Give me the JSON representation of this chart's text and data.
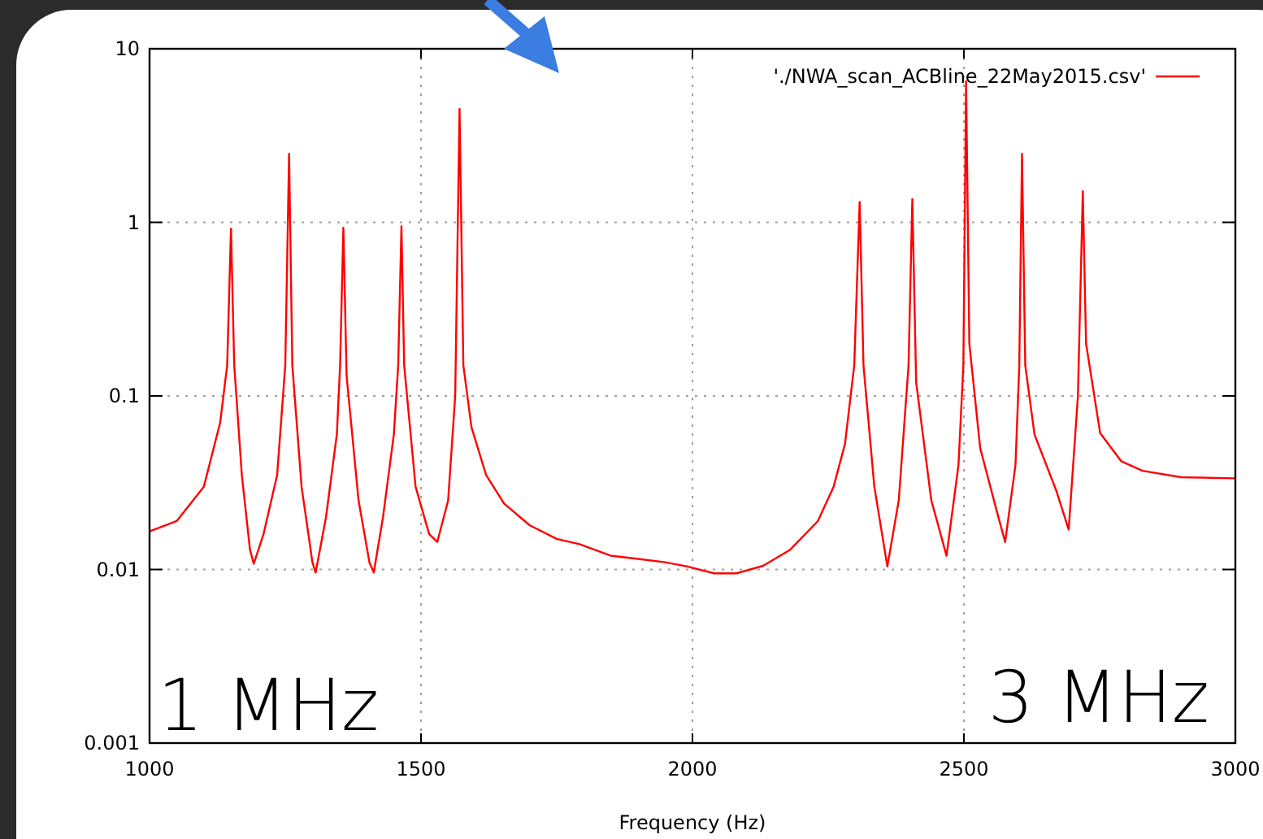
{
  "chart_data": {
    "type": "line",
    "xlabel": "Frequency (Hz)",
    "annotations": [
      "1 MHz",
      "3 MHz"
    ],
    "xlim": [
      1000,
      3000
    ],
    "xticks": [
      1000,
      1500,
      2000,
      2500,
      3000
    ],
    "ylim": [
      0.001,
      10
    ],
    "yticks": [
      0.001,
      0.01,
      0.1,
      1,
      10
    ],
    "log": "y",
    "grid": true,
    "legend": "top right",
    "marker": "none",
    "line_style": "solid",
    "series": [
      {
        "name": "'./NWA_scan_ACBline_22May2015.csv'",
        "color": "#ff0000",
        "x": [
          1000,
          1050,
          1100,
          1130,
          1143,
          1150,
          1156,
          1170,
          1185,
          1192,
          1210,
          1235,
          1250,
          1257,
          1263,
          1280,
          1300,
          1306,
          1325,
          1345,
          1351,
          1357,
          1363,
          1385,
          1405,
          1413,
          1430,
          1450,
          1458,
          1464,
          1469,
          1490,
          1515,
          1530,
          1550,
          1563,
          1571,
          1578,
          1593,
          1620,
          1653,
          1700,
          1750,
          1792,
          1850,
          1900,
          1950,
          1991,
          2040,
          2081,
          2130,
          2180,
          2231,
          2260,
          2281,
          2298,
          2308,
          2315,
          2335,
          2359,
          2380,
          2398,
          2405,
          2412,
          2440,
          2468,
          2490,
          2499,
          2504,
          2510,
          2530,
          2560,
          2576,
          2595,
          2602,
          2607,
          2613,
          2630,
          2671,
          2693,
          2710,
          2719,
          2725,
          2751,
          2790,
          2829,
          2900,
          3000
        ],
        "values": [
          0.0166,
          0.019,
          0.03,
          0.07,
          0.15,
          0.92,
          0.15,
          0.035,
          0.013,
          0.0108,
          0.016,
          0.035,
          0.15,
          2.48,
          0.15,
          0.03,
          0.011,
          0.0096,
          0.02,
          0.06,
          0.15,
          0.93,
          0.13,
          0.025,
          0.011,
          0.0096,
          0.02,
          0.06,
          0.15,
          0.95,
          0.15,
          0.03,
          0.016,
          0.0144,
          0.025,
          0.1,
          4.5,
          0.15,
          0.066,
          0.035,
          0.024,
          0.018,
          0.015,
          0.014,
          0.012,
          0.0115,
          0.011,
          0.0104,
          0.0095,
          0.0095,
          0.0105,
          0.013,
          0.019,
          0.03,
          0.053,
          0.15,
          1.31,
          0.15,
          0.03,
          0.0104,
          0.025,
          0.15,
          1.36,
          0.12,
          0.025,
          0.012,
          0.04,
          0.15,
          6.5,
          0.2,
          0.05,
          0.022,
          0.0144,
          0.04,
          0.15,
          2.48,
          0.15,
          0.06,
          0.028,
          0.017,
          0.1,
          1.51,
          0.2,
          0.061,
          0.042,
          0.037,
          0.034,
          0.0335
        ]
      }
    ]
  }
}
